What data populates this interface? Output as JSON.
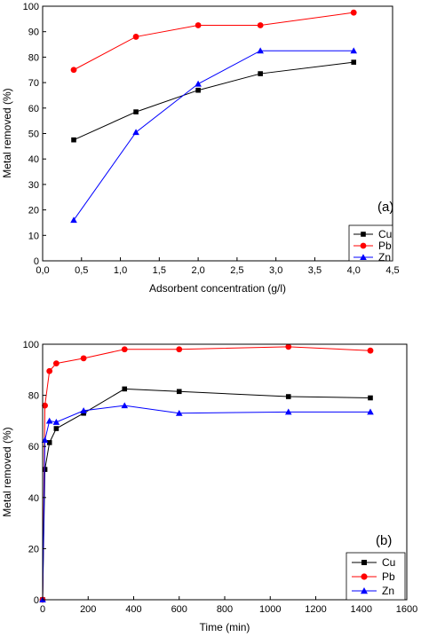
{
  "chart_data": [
    {
      "type": "line",
      "title": "",
      "panel_label": "(a)",
      "xlabel": "Adsorbent concentration (g/l)",
      "ylabel": "Metal removed (%)",
      "xlim": [
        0,
        4.5
      ],
      "ylim": [
        0,
        100
      ],
      "xticks": [
        0,
        0.5,
        1,
        1.5,
        2,
        2.5,
        3,
        3.5,
        4,
        4.5
      ],
      "xtick_labels": [
        "0,0",
        "0,5",
        "1,0",
        "1,5",
        "2,0",
        "2,5",
        "3,0",
        "3,5",
        "4,0",
        "4,5"
      ],
      "yticks": [
        0,
        10,
        20,
        30,
        40,
        50,
        60,
        70,
        80,
        90,
        100
      ],
      "ytick_labels": [
        "0",
        "10",
        "20",
        "30",
        "40",
        "50",
        "60",
        "70",
        "80",
        "90",
        "100"
      ],
      "grid": false,
      "legend": "bottom-right",
      "series": [
        {
          "name": "Cu",
          "color": "#000000",
          "marker": "square",
          "x": [
            0.4,
            1.2,
            2.0,
            2.8,
            4.0
          ],
          "y": [
            47.5,
            58.5,
            67,
            73.5,
            78
          ]
        },
        {
          "name": "Pb",
          "color": "#ff0000",
          "marker": "circle",
          "x": [
            0.4,
            1.2,
            2.0,
            2.8,
            4.0
          ],
          "y": [
            75,
            88,
            92.5,
            92.5,
            97.5
          ]
        },
        {
          "name": "Zn",
          "color": "#0000ff",
          "marker": "triangle",
          "x": [
            0.4,
            1.2,
            2.0,
            2.8,
            4.0
          ],
          "y": [
            16,
            50.5,
            69.5,
            82.5,
            82.5
          ]
        }
      ]
    },
    {
      "type": "line",
      "title": "",
      "panel_label": "(b)",
      "xlabel": "Time (min)",
      "ylabel": "Metal removed (%)",
      "xlim": [
        0,
        1600
      ],
      "ylim": [
        0,
        100
      ],
      "xticks": [
        0,
        200,
        400,
        600,
        800,
        1000,
        1200,
        1400,
        1600
      ],
      "xtick_labels": [
        "0",
        "200",
        "400",
        "600",
        "800",
        "1000",
        "1200",
        "1400",
        "1600"
      ],
      "yticks": [
        0,
        20,
        40,
        60,
        80,
        100
      ],
      "ytick_labels": [
        "0",
        "20",
        "40",
        "60",
        "80",
        "100"
      ],
      "grid": false,
      "legend": "bottom-right",
      "series": [
        {
          "name": "Cu",
          "color": "#000000",
          "marker": "square",
          "x": [
            0,
            10,
            30,
            60,
            180,
            360,
            600,
            1080,
            1440
          ],
          "y": [
            0,
            51,
            61.5,
            67,
            73,
            82.5,
            81.5,
            79.5,
            79
          ]
        },
        {
          "name": "Pb",
          "color": "#ff0000",
          "marker": "circle",
          "x": [
            0,
            10,
            30,
            60,
            180,
            360,
            600,
            1080,
            1440
          ],
          "y": [
            0,
            76,
            89.5,
            92.5,
            94.5,
            98,
            98,
            99,
            97.5
          ]
        },
        {
          "name": "Zn",
          "color": "#0000ff",
          "marker": "triangle",
          "x": [
            0,
            10,
            30,
            60,
            180,
            360,
            600,
            1080,
            1440
          ],
          "y": [
            0,
            62.5,
            70,
            69.5,
            74,
            76,
            73,
            73.5,
            73.5
          ]
        }
      ]
    }
  ]
}
